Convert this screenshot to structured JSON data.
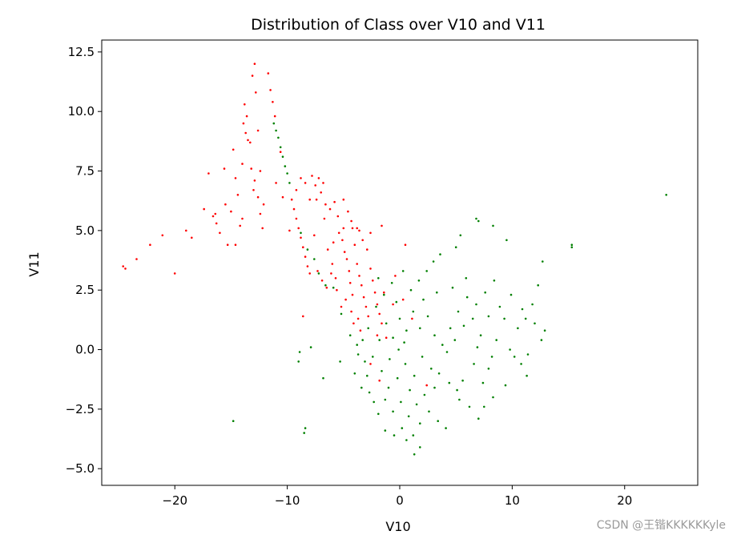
{
  "chart_data": {
    "type": "scatter",
    "title": "Distribution of Class over V10 and V11",
    "xlabel": "V10",
    "ylabel": "V11",
    "xlim": [
      -26.5,
      26.5
    ],
    "ylim": [
      -5.7,
      13.0
    ],
    "xticks": [
      -20,
      -10,
      0,
      10,
      20
    ],
    "xtick_labels": [
      "−20",
      "−10",
      "0",
      "10",
      "20"
    ],
    "yticks": [
      -5.0,
      -2.5,
      0.0,
      2.5,
      5.0,
      7.5,
      10.0,
      12.5
    ],
    "ytick_labels": [
      "−5.0",
      "−2.5",
      "0.0",
      "2.5",
      "5.0",
      "7.5",
      "10.0",
      "12.5"
    ],
    "grid": false,
    "series": [
      {
        "color": "#ff0000",
        "points": [
          [
            -24.6,
            3.5
          ],
          [
            -24.4,
            3.4
          ],
          [
            -23.4,
            3.8
          ],
          [
            -22.2,
            4.4
          ],
          [
            -21.1,
            4.8
          ],
          [
            -20.0,
            3.2
          ],
          [
            -19.0,
            5.0
          ],
          [
            -18.5,
            4.7
          ],
          [
            -17.4,
            5.9
          ],
          [
            -17.0,
            7.4
          ],
          [
            -16.6,
            5.6
          ],
          [
            -16.4,
            5.7
          ],
          [
            -16.0,
            4.9
          ],
          [
            -15.6,
            7.6
          ],
          [
            -15.3,
            4.4
          ],
          [
            -15.0,
            5.8
          ],
          [
            -14.8,
            8.4
          ],
          [
            -14.6,
            7.2
          ],
          [
            -14.4,
            6.5
          ],
          [
            -14.2,
            5.2
          ],
          [
            -14.0,
            7.8
          ],
          [
            -13.8,
            10.3
          ],
          [
            -13.6,
            9.8
          ],
          [
            -13.3,
            8.7
          ],
          [
            -13.1,
            11.5
          ],
          [
            -12.9,
            12.0
          ],
          [
            -12.8,
            10.8
          ],
          [
            -12.6,
            9.2
          ],
          [
            -12.4,
            7.5
          ],
          [
            -12.1,
            6.1
          ],
          [
            -11.7,
            11.6
          ],
          [
            -11.5,
            10.9
          ],
          [
            -11.3,
            10.4
          ],
          [
            -11.1,
            9.8
          ],
          [
            -11.0,
            7.0
          ],
          [
            -10.6,
            8.3
          ],
          [
            -10.4,
            6.4
          ],
          [
            -13.9,
            9.5
          ],
          [
            -13.7,
            9.1
          ],
          [
            -13.5,
            8.8
          ],
          [
            -13.2,
            7.6
          ],
          [
            -12.9,
            7.1
          ],
          [
            -13.0,
            6.7
          ],
          [
            -12.6,
            6.4
          ],
          [
            -12.4,
            5.7
          ],
          [
            -12.2,
            5.1
          ],
          [
            -14.6,
            4.4
          ],
          [
            -14.0,
            5.5
          ],
          [
            -15.5,
            6.1
          ],
          [
            -16.3,
            5.3
          ],
          [
            -9.6,
            6.3
          ],
          [
            -9.4,
            5.9
          ],
          [
            -9.2,
            5.5
          ],
          [
            -9.0,
            5.1
          ],
          [
            -8.8,
            4.7
          ],
          [
            -8.6,
            4.3
          ],
          [
            -8.4,
            3.9
          ],
          [
            -8.2,
            3.5
          ],
          [
            -8.0,
            3.2
          ],
          [
            -9.2,
            6.7
          ],
          [
            -8.8,
            7.2
          ],
          [
            -8.4,
            7.0
          ],
          [
            -7.8,
            7.3
          ],
          [
            -7.5,
            6.9
          ],
          [
            -7.2,
            7.2
          ],
          [
            -7.0,
            6.6
          ],
          [
            -6.8,
            7.0
          ],
          [
            -7.4,
            6.3
          ],
          [
            -6.6,
            6.1
          ],
          [
            -6.2,
            5.9
          ],
          [
            -5.8,
            6.2
          ],
          [
            -5.5,
            5.6
          ],
          [
            -5.0,
            6.3
          ],
          [
            -4.6,
            5.8
          ],
          [
            -4.3,
            5.4
          ],
          [
            -3.8,
            5.1
          ],
          [
            -3.3,
            4.6
          ],
          [
            -2.9,
            4.2
          ],
          [
            -2.6,
            4.9
          ],
          [
            -1.6,
            5.2
          ],
          [
            0.5,
            4.4
          ],
          [
            -6.4,
            4.2
          ],
          [
            -6.0,
            3.6
          ],
          [
            -5.7,
            3.0
          ],
          [
            -5.4,
            4.9
          ],
          [
            -5.1,
            4.6
          ],
          [
            -4.9,
            4.1
          ],
          [
            -4.7,
            3.8
          ],
          [
            -4.5,
            3.3
          ],
          [
            -4.4,
            2.8
          ],
          [
            -4.2,
            2.3
          ],
          [
            -4.0,
            4.4
          ],
          [
            -3.8,
            3.6
          ],
          [
            -3.6,
            3.1
          ],
          [
            -3.4,
            2.7
          ],
          [
            -3.2,
            2.2
          ],
          [
            -3.0,
            1.8
          ],
          [
            -2.8,
            1.4
          ],
          [
            -2.6,
            3.4
          ],
          [
            -2.4,
            2.9
          ],
          [
            -2.2,
            2.4
          ],
          [
            -2.0,
            1.9
          ],
          [
            -1.8,
            1.5
          ],
          [
            -1.6,
            1.1
          ],
          [
            -7.3,
            3.3
          ],
          [
            -6.9,
            2.9
          ],
          [
            -6.5,
            2.6
          ],
          [
            -6.1,
            3.2
          ],
          [
            -5.6,
            2.5
          ],
          [
            -5.2,
            1.8
          ],
          [
            -4.8,
            2.1
          ],
          [
            -4.3,
            1.6
          ],
          [
            -4.1,
            1.1
          ],
          [
            -3.7,
            1.3
          ],
          [
            -3.5,
            0.8
          ],
          [
            -8.6,
            1.4
          ],
          [
            -2.0,
            0.6
          ],
          [
            -1.2,
            0.5
          ],
          [
            -0.6,
            1.9
          ],
          [
            0.3,
            2.1
          ],
          [
            1.1,
            1.3
          ],
          [
            -0.4,
            3.1
          ],
          [
            -1.4,
            2.4
          ],
          [
            2.4,
            -1.5
          ],
          [
            -2.6,
            -0.6
          ],
          [
            -1.8,
            -1.3
          ],
          [
            -5.0,
            5.1
          ],
          [
            -4.2,
            5.1
          ],
          [
            -3.6,
            5.0
          ],
          [
            -5.9,
            4.5
          ],
          [
            -6.7,
            5.5
          ],
          [
            -7.6,
            4.8
          ],
          [
            -8.0,
            6.3
          ],
          [
            -9.8,
            5.0
          ]
        ]
      },
      {
        "color": "#008000",
        "points": [
          [
            -11.2,
            9.5
          ],
          [
            -11.0,
            9.2
          ],
          [
            -10.8,
            8.9
          ],
          [
            -10.6,
            8.5
          ],
          [
            -10.4,
            8.1
          ],
          [
            -10.2,
            7.7
          ],
          [
            -10.0,
            7.4
          ],
          [
            -9.8,
            7.0
          ],
          [
            -8.8,
            4.9
          ],
          [
            -8.2,
            4.2
          ],
          [
            -7.6,
            3.8
          ],
          [
            -7.2,
            3.2
          ],
          [
            -6.6,
            2.7
          ],
          [
            -5.9,
            2.6
          ],
          [
            -5.2,
            1.5
          ],
          [
            -4.4,
            0.6
          ],
          [
            -3.8,
            0.2
          ],
          [
            -3.1,
            -0.5
          ],
          [
            -2.9,
            -1.1
          ],
          [
            -3.4,
            -1.6
          ],
          [
            -3.7,
            -0.2
          ],
          [
            -4.0,
            -1.0
          ],
          [
            -5.3,
            -0.5
          ],
          [
            -6.8,
            -1.2
          ],
          [
            -7.9,
            0.1
          ],
          [
            -8.9,
            -0.1
          ],
          [
            -9.0,
            -0.5
          ],
          [
            -8.4,
            -3.3
          ],
          [
            -8.5,
            -3.5
          ],
          [
            -14.8,
            -3.0
          ],
          [
            23.7,
            6.5
          ],
          [
            15.3,
            4.3
          ],
          [
            15.3,
            4.4
          ],
          [
            9.5,
            4.6
          ],
          [
            8.3,
            5.2
          ],
          [
            6.8,
            5.5
          ],
          [
            7.0,
            5.4
          ],
          [
            5.4,
            4.8
          ],
          [
            5.0,
            4.3
          ],
          [
            3.6,
            4.0
          ],
          [
            3.0,
            3.7
          ],
          [
            2.4,
            3.3
          ],
          [
            1.7,
            2.9
          ],
          [
            1.0,
            2.5
          ],
          [
            12.7,
            3.7
          ],
          [
            12.3,
            2.7
          ],
          [
            11.8,
            1.9
          ],
          [
            11.2,
            1.3
          ],
          [
            10.5,
            0.9
          ],
          [
            12.9,
            0.8
          ],
          [
            12.6,
            0.4
          ],
          [
            11.4,
            -0.2
          ],
          [
            10.8,
            -0.6
          ],
          [
            11.3,
            -1.1
          ],
          [
            10.2,
            -0.3
          ],
          [
            9.4,
            -1.5
          ],
          [
            8.3,
            -2.0
          ],
          [
            7.5,
            -2.4
          ],
          [
            7.0,
            -2.9
          ],
          [
            6.2,
            -2.4
          ],
          [
            5.3,
            -2.1
          ],
          [
            4.4,
            -1.4
          ],
          [
            3.1,
            -1.6
          ],
          [
            2.6,
            -2.6
          ],
          [
            1.8,
            -3.1
          ],
          [
            1.2,
            -3.6
          ],
          [
            1.8,
            -4.1
          ],
          [
            1.3,
            -4.4
          ],
          [
            0.6,
            -3.8
          ],
          [
            -0.5,
            -3.6
          ],
          [
            -1.3,
            -3.4
          ],
          [
            -1.9,
            -2.7
          ],
          [
            -2.3,
            -2.2
          ],
          [
            3.4,
            -3.0
          ],
          [
            4.1,
            -3.3
          ],
          [
            5.1,
            -1.7
          ],
          [
            5.6,
            -1.3
          ],
          [
            6.6,
            -0.6
          ],
          [
            7.9,
            -0.8
          ],
          [
            8.6,
            0.4
          ],
          [
            9.3,
            1.3
          ],
          [
            8.9,
            1.8
          ],
          [
            9.9,
            2.3
          ],
          [
            8.4,
            2.9
          ],
          [
            7.6,
            2.4
          ],
          [
            6.8,
            1.9
          ],
          [
            6.0,
            2.2
          ],
          [
            5.2,
            1.6
          ],
          [
            4.5,
            0.9
          ],
          [
            3.8,
            0.2
          ],
          [
            3.1,
            0.6
          ],
          [
            2.5,
            1.4
          ],
          [
            1.8,
            0.9
          ],
          [
            1.2,
            1.6
          ],
          [
            0.6,
            0.8
          ],
          [
            0.0,
            1.3
          ],
          [
            -0.6,
            0.5
          ],
          [
            -1.2,
            1.1
          ],
          [
            -1.8,
            0.4
          ],
          [
            -2.4,
            -0.3
          ],
          [
            -1.6,
            -0.9
          ],
          [
            -0.9,
            -0.4
          ],
          [
            -0.2,
            -1.2
          ],
          [
            0.5,
            -0.6
          ],
          [
            1.3,
            -1.1
          ],
          [
            2.0,
            -0.3
          ],
          [
            2.8,
            -0.8
          ],
          [
            3.5,
            -1.0
          ],
          [
            4.2,
            -0.1
          ],
          [
            4.9,
            0.4
          ],
          [
            5.7,
            1.0
          ],
          [
            6.5,
            1.3
          ],
          [
            7.2,
            0.6
          ],
          [
            7.9,
            1.4
          ],
          [
            -1.3,
            -2.1
          ],
          [
            -0.6,
            -2.6
          ],
          [
            0.1,
            -2.2
          ],
          [
            0.8,
            -2.8
          ],
          [
            1.5,
            -2.3
          ],
          [
            2.2,
            -1.9
          ],
          [
            -2.1,
            1.8
          ],
          [
            -1.4,
            2.3
          ],
          [
            -0.7,
            2.8
          ],
          [
            0.3,
            3.3
          ],
          [
            -1.9,
            3.0
          ],
          [
            -0.3,
            2.0
          ],
          [
            0.9,
            -1.7
          ],
          [
            -1.0,
            -1.6
          ],
          [
            4.7,
            2.6
          ],
          [
            5.9,
            3.0
          ],
          [
            3.3,
            2.4
          ],
          [
            2.1,
            2.1
          ],
          [
            6.9,
            0.1
          ],
          [
            8.2,
            -0.3
          ],
          [
            7.4,
            -1.4
          ],
          [
            9.8,
            0.0
          ],
          [
            10.9,
            1.7
          ],
          [
            12.0,
            1.1
          ],
          [
            -2.8,
            0.9
          ],
          [
            -3.3,
            0.4
          ],
          [
            -2.7,
            -1.8
          ],
          [
            0.2,
            -3.3
          ],
          [
            -0.1,
            0.0
          ],
          [
            0.4,
            0.3
          ]
        ]
      }
    ]
  },
  "watermark": "CSDN @王锴KKKKKKyle"
}
